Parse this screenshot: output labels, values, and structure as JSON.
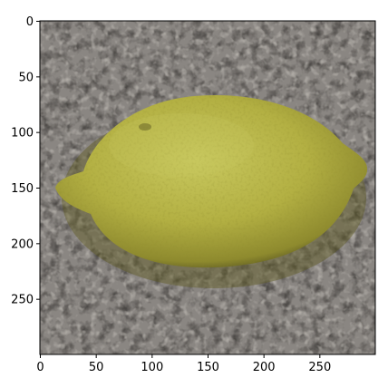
{
  "figure": {
    "x_tick_labels": [
      "0",
      "50",
      "100",
      "150",
      "200",
      "250"
    ],
    "x_tick_values": [
      0,
      50,
      100,
      150,
      200,
      250
    ],
    "y_tick_labels": [
      "0",
      "50",
      "100",
      "150",
      "200",
      "250"
    ],
    "y_tick_values": [
      0,
      50,
      100,
      150,
      200,
      250
    ],
    "x_range": [
      0,
      300
    ],
    "y_range": [
      0,
      300
    ],
    "y_inverted": true
  },
  "image": {
    "subject": "lemon",
    "colors": {
      "background": "#8a8682",
      "background_speckle_dark": "#4a4744",
      "background_speckle_light": "#b8b4ae",
      "lemon_light": "#c8c85e",
      "lemon_mid": "#b3b043",
      "lemon_dark": "#8e8a2e",
      "lemon_shadow": "#5f5c22"
    }
  }
}
